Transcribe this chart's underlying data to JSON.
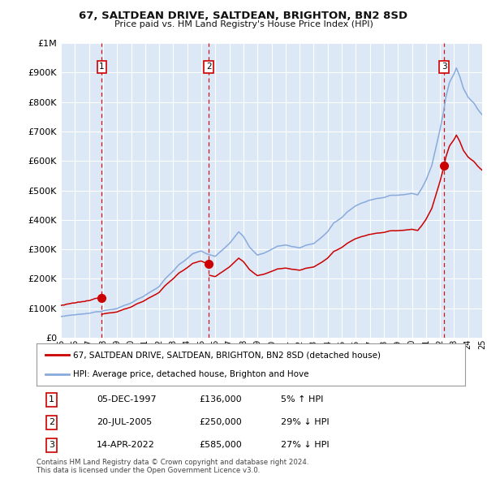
{
  "title": "67, SALTDEAN DRIVE, SALTDEAN, BRIGHTON, BN2 8SD",
  "subtitle": "Price paid vs. HM Land Registry's House Price Index (HPI)",
  "sale_decimal_years": [
    1997.917,
    2005.542,
    2022.292
  ],
  "sale_prices": [
    136000,
    250000,
    585000
  ],
  "sale_labels": [
    "1",
    "2",
    "3"
  ],
  "table_data": [
    [
      "1",
      "05-DEC-1997",
      "£136,000",
      "5% ↑ HPI"
    ],
    [
      "2",
      "20-JUL-2005",
      "£250,000",
      "29% ↓ HPI"
    ],
    [
      "3",
      "14-APR-2022",
      "£585,000",
      "27% ↓ HPI"
    ]
  ],
  "legend_line1": "67, SALTDEAN DRIVE, SALTDEAN, BRIGHTON, BN2 8SD (detached house)",
  "legend_line2": "HPI: Average price, detached house, Brighton and Hove",
  "footer1": "Contains HM Land Registry data © Crown copyright and database right 2024.",
  "footer2": "This data is licensed under the Open Government Licence v3.0.",
  "sale_color": "#cc0000",
  "hpi_color": "#88aadd",
  "dashed_color": "#cc0000",
  "bg_color": "#ffffff",
  "plot_bg_color": "#dce8f5",
  "grid_color": "#ffffff",
  "ylim_max": 1000000,
  "ylim_min": 0,
  "xlim_min": 1995,
  "xlim_max": 2025,
  "hpi_waypoints": [
    [
      1995,
      1,
      72000
    ],
    [
      1995,
      6,
      74000
    ],
    [
      1996,
      1,
      76000
    ],
    [
      1996,
      6,
      78000
    ],
    [
      1997,
      1,
      80000
    ],
    [
      1997,
      6,
      84000
    ],
    [
      1997,
      12,
      88000
    ],
    [
      1998,
      1,
      90000
    ],
    [
      1998,
      6,
      95000
    ],
    [
      1999,
      1,
      100000
    ],
    [
      1999,
      6,
      108000
    ],
    [
      2000,
      1,
      118000
    ],
    [
      2000,
      6,
      130000
    ],
    [
      2001,
      1,
      145000
    ],
    [
      2001,
      6,
      158000
    ],
    [
      2002,
      1,
      175000
    ],
    [
      2002,
      6,
      200000
    ],
    [
      2003,
      1,
      225000
    ],
    [
      2003,
      6,
      248000
    ],
    [
      2004,
      1,
      268000
    ],
    [
      2004,
      6,
      285000
    ],
    [
      2005,
      1,
      295000
    ],
    [
      2005,
      6,
      285000
    ],
    [
      2006,
      1,
      278000
    ],
    [
      2006,
      6,
      295000
    ],
    [
      2007,
      1,
      320000
    ],
    [
      2007,
      6,
      345000
    ],
    [
      2007,
      9,
      360000
    ],
    [
      2008,
      1,
      345000
    ],
    [
      2008,
      6,
      310000
    ],
    [
      2009,
      1,
      280000
    ],
    [
      2009,
      6,
      285000
    ],
    [
      2010,
      1,
      300000
    ],
    [
      2010,
      6,
      310000
    ],
    [
      2011,
      1,
      315000
    ],
    [
      2011,
      6,
      310000
    ],
    [
      2012,
      1,
      305000
    ],
    [
      2012,
      6,
      315000
    ],
    [
      2013,
      1,
      320000
    ],
    [
      2013,
      6,
      335000
    ],
    [
      2014,
      1,
      360000
    ],
    [
      2014,
      6,
      390000
    ],
    [
      2015,
      1,
      410000
    ],
    [
      2015,
      6,
      430000
    ],
    [
      2016,
      1,
      450000
    ],
    [
      2016,
      6,
      460000
    ],
    [
      2017,
      1,
      470000
    ],
    [
      2017,
      6,
      475000
    ],
    [
      2018,
      1,
      480000
    ],
    [
      2018,
      6,
      488000
    ],
    [
      2019,
      1,
      490000
    ],
    [
      2019,
      6,
      492000
    ],
    [
      2020,
      1,
      495000
    ],
    [
      2020,
      6,
      490000
    ],
    [
      2020,
      9,
      510000
    ],
    [
      2021,
      1,
      540000
    ],
    [
      2021,
      6,
      590000
    ],
    [
      2021,
      9,
      640000
    ],
    [
      2022,
      1,
      710000
    ],
    [
      2022,
      4,
      770000
    ],
    [
      2022,
      6,
      820000
    ],
    [
      2022,
      9,
      870000
    ],
    [
      2023,
      1,
      900000
    ],
    [
      2023,
      3,
      920000
    ],
    [
      2023,
      6,
      890000
    ],
    [
      2023,
      9,
      850000
    ],
    [
      2024,
      1,
      820000
    ],
    [
      2024,
      6,
      800000
    ],
    [
      2024,
      9,
      780000
    ],
    [
      2025,
      1,
      760000
    ]
  ]
}
